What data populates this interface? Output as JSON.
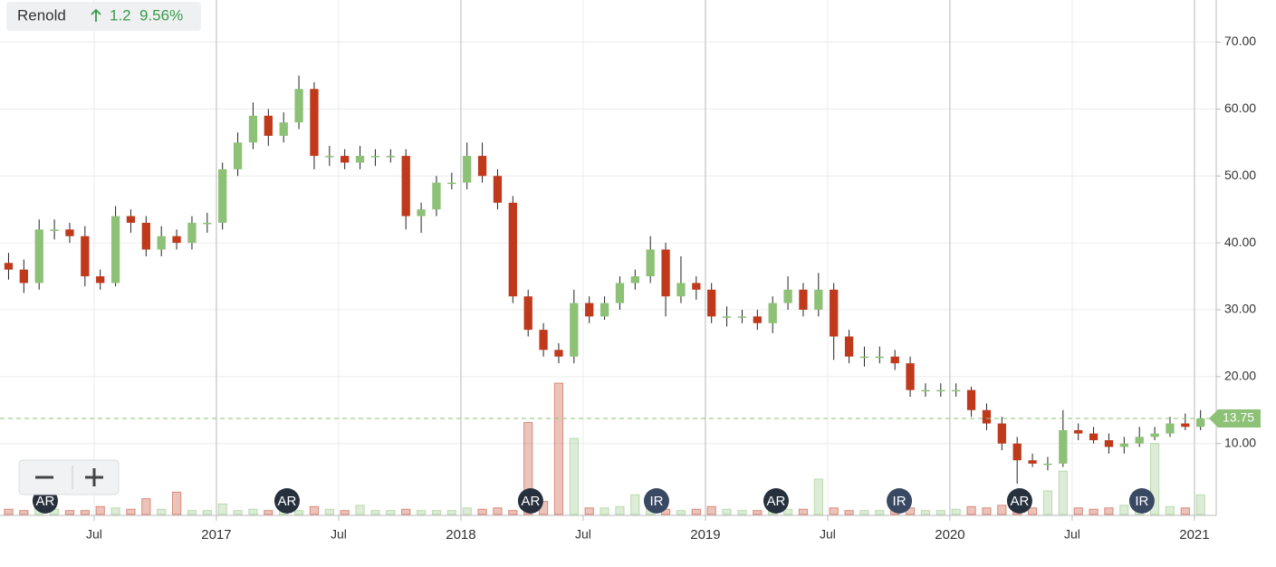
{
  "chart_data": {
    "type": "candlestick",
    "title": "Renold",
    "change": 1.2,
    "change_percent": "9.56%",
    "x": [
      2016.15,
      2016.2125,
      2016.275,
      2016.3375,
      2016.4,
      2016.4625,
      2016.525,
      2016.5875,
      2016.65,
      2016.7125,
      2016.775,
      2016.8375,
      2016.9,
      2016.9625,
      2017.025,
      2017.0875,
      2017.15,
      2017.2125,
      2017.275,
      2017.3375,
      2017.4,
      2017.4625,
      2017.525,
      2017.5875,
      2017.65,
      2017.7125,
      2017.775,
      2017.8375,
      2017.9,
      2017.9625,
      2018.025,
      2018.0875,
      2018.15,
      2018.2125,
      2018.275,
      2018.3375,
      2018.4,
      2018.4625,
      2018.525,
      2018.5875,
      2018.65,
      2018.7125,
      2018.775,
      2018.8375,
      2018.9,
      2018.9625,
      2019.025,
      2019.0875,
      2019.15,
      2019.2125,
      2019.275,
      2019.3375,
      2019.4,
      2019.4625,
      2019.525,
      2019.5875,
      2019.65,
      2019.7125,
      2019.775,
      2019.8375,
      2019.9,
      2019.9625,
      2020.025,
      2020.0875,
      2020.15,
      2020.2125,
      2020.275,
      2020.3375,
      2020.4,
      2020.4625,
      2020.525,
      2020.5875,
      2020.65,
      2020.7125,
      2020.775,
      2020.8375,
      2020.9,
      2020.9625,
      2021.025
    ],
    "open": [
      37,
      36,
      34,
      42,
      42,
      41,
      35,
      34,
      44,
      43,
      39,
      41,
      40,
      43,
      43,
      51,
      55,
      59,
      56,
      58,
      63,
      53,
      53,
      52,
      53,
      53,
      53,
      44,
      45,
      49,
      49,
      53,
      50,
      46,
      32,
      27,
      24,
      23,
      31,
      29,
      31,
      34,
      35,
      39,
      32,
      34,
      33,
      29,
      29,
      29,
      28,
      31,
      33,
      30,
      33,
      26,
      23,
      23,
      23,
      22,
      18,
      18,
      18,
      18,
      15,
      13,
      10,
      7.5,
      7,
      7,
      12,
      11.5,
      10.5,
      9.5,
      10,
      11,
      11.5,
      13,
      12.5
    ],
    "high": [
      38.5,
      37.5,
      43.5,
      43.5,
      43,
      42.5,
      36,
      45.5,
      45,
      44,
      42.5,
      42,
      44,
      44.5,
      52,
      56.5,
      61,
      60,
      59.5,
      65,
      64,
      54.5,
      54,
      54.5,
      54,
      54,
      54,
      46,
      50,
      50.5,
      55,
      55,
      51,
      47,
      33,
      28,
      25,
      33,
      32,
      32,
      35,
      36,
      41,
      40,
      38,
      35,
      34,
      30.5,
      30,
      30,
      32,
      35,
      34,
      35.5,
      34,
      27,
      24.5,
      24.5,
      24,
      23,
      19,
      19,
      19,
      18.5,
      16,
      14,
      11,
      8.5,
      8,
      15,
      13,
      12.5,
      11.5,
      11,
      12.5,
      12.5,
      14,
      14.5,
      15
    ],
    "low": [
      34.5,
      32.5,
      33,
      40.5,
      40,
      33.5,
      33,
      33.5,
      41.5,
      38,
      38,
      39,
      39,
      41.5,
      42,
      50,
      54,
      54.5,
      55,
      57,
      51,
      51.5,
      51,
      51,
      51.5,
      52,
      42,
      41.5,
      44,
      48,
      48,
      49,
      45,
      31,
      26,
      23,
      22,
      22,
      28,
      28.5,
      30,
      33,
      34,
      29,
      31,
      31.5,
      28,
      27.5,
      28,
      27,
      26.5,
      30,
      29,
      29,
      22.5,
      22,
      21.5,
      22,
      21,
      17,
      17,
      17,
      17,
      14,
      12,
      9,
      4,
      6.5,
      6,
      6.5,
      10.5,
      10,
      8.5,
      8.5,
      9.5,
      10.5,
      11,
      12,
      12
    ],
    "close": [
      36,
      34,
      42,
      42,
      41,
      35,
      34,
      44,
      43,
      39,
      41,
      40,
      43,
      43,
      51,
      55,
      59,
      56,
      58,
      63,
      53,
      53,
      52,
      53,
      53,
      53,
      44,
      45,
      49,
      49,
      53,
      50,
      46,
      32,
      27,
      24,
      23,
      31,
      29,
      31,
      34,
      35,
      39,
      32,
      34,
      33,
      29,
      29,
      29,
      28,
      31,
      33,
      30,
      33,
      26,
      23,
      23,
      23,
      22,
      18,
      18,
      18,
      18,
      15,
      13,
      10,
      7.5,
      7,
      7,
      12,
      11.5,
      10.5,
      9.5,
      10,
      11,
      11.5,
      13,
      12.5,
      13.75
    ],
    "volume": [
      4,
      3,
      5,
      4,
      3,
      3,
      6,
      5,
      4,
      12,
      4,
      17,
      3,
      3,
      8,
      3,
      4,
      3,
      4,
      3,
      6,
      4,
      3,
      7,
      3,
      3,
      4,
      3,
      3,
      3,
      5,
      4,
      5,
      3,
      70,
      10,
      100,
      58,
      5,
      5,
      6,
      15,
      6,
      4,
      3,
      4,
      6,
      4,
      3,
      3,
      5,
      4,
      4,
      27,
      5,
      3,
      3,
      3,
      3,
      5,
      3,
      3,
      4,
      6,
      5,
      7,
      10,
      5,
      18,
      33,
      5,
      4,
      5,
      7,
      9,
      54,
      6,
      5,
      15
    ],
    "vlim": [
      0,
      100
    ],
    "up_color": "#8cc176",
    "down_color": "#c0391b",
    "xlim": [
      2016.115,
      2021.078
    ],
    "xticks": [
      {
        "value": 2016.5,
        "label": "Jul"
      },
      {
        "value": 2017,
        "label": "2017"
      },
      {
        "value": 2017.5,
        "label": "Jul"
      },
      {
        "value": 2018,
        "label": "2018"
      },
      {
        "value": 2018.5,
        "label": "Jul"
      },
      {
        "value": 2019,
        "label": "2019"
      },
      {
        "value": 2019.5,
        "label": "Jul"
      },
      {
        "value": 2020,
        "label": "2020"
      },
      {
        "value": 2020.5,
        "label": "Jul"
      },
      {
        "value": 2021,
        "label": "2021"
      }
    ],
    "ylim": [
      -0.6,
      76.3
    ],
    "yticks": [
      {
        "value": 10,
        "label": "10.00"
      },
      {
        "value": 20,
        "label": "20.00"
      },
      {
        "value": 30,
        "label": "30.00"
      },
      {
        "value": 40,
        "label": "40.00"
      },
      {
        "value": 50,
        "label": "50.00"
      },
      {
        "value": 60,
        "label": "60.00"
      },
      {
        "value": 70,
        "label": "70.00"
      }
    ],
    "grid": true,
    "last_price": 13.75,
    "events": [
      {
        "x": 2016.3,
        "label": "AR"
      },
      {
        "x": 2017.289,
        "label": "AR"
      },
      {
        "x": 2018.285,
        "label": "AR"
      },
      {
        "x": 2018.8,
        "label": "IR"
      },
      {
        "x": 2019.289,
        "label": "AR"
      },
      {
        "x": 2019.793,
        "label": "IR"
      },
      {
        "x": 2020.285,
        "label": "AR"
      },
      {
        "x": 2020.785,
        "label": "IR"
      }
    ]
  }
}
